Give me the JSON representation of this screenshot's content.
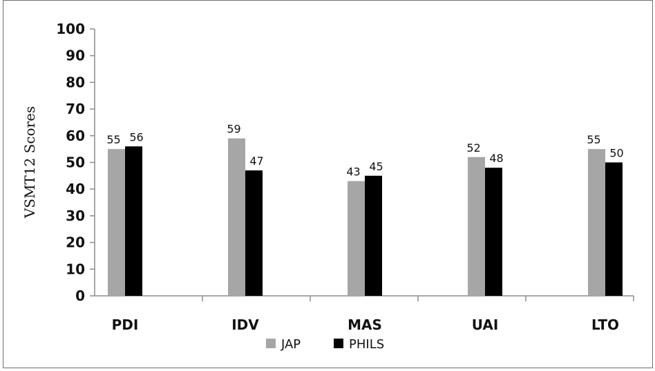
{
  "chart_data": {
    "type": "bar",
    "categories": [
      "PDI",
      "IDV",
      "MAS",
      "UAI",
      "LTO"
    ],
    "series": [
      {
        "name": "JAP",
        "values": [
          55,
          59,
          43,
          52,
          55
        ],
        "labels": [
          "55",
          "59",
          "43",
          "52",
          "55"
        ],
        "color": "#a6a6a6"
      },
      {
        "name": "PHILS",
        "values": [
          56,
          47,
          45,
          48,
          50
        ],
        "labels": [
          "56",
          "47",
          "45",
          "48",
          "50"
        ],
        "color": "#000000"
      }
    ],
    "ylabel": "VSMT12 Scores",
    "xlabel": "",
    "ylim": [
      0,
      100
    ],
    "yticks": [
      0,
      10,
      20,
      30,
      40,
      50,
      60,
      70,
      80,
      90,
      100
    ],
    "ytick_labels": [
      "0",
      "10",
      "20",
      "30",
      "40",
      "50",
      "60",
      "70",
      "80",
      "90",
      "100"
    ],
    "grid": false,
    "legend_position": "bottom"
  }
}
